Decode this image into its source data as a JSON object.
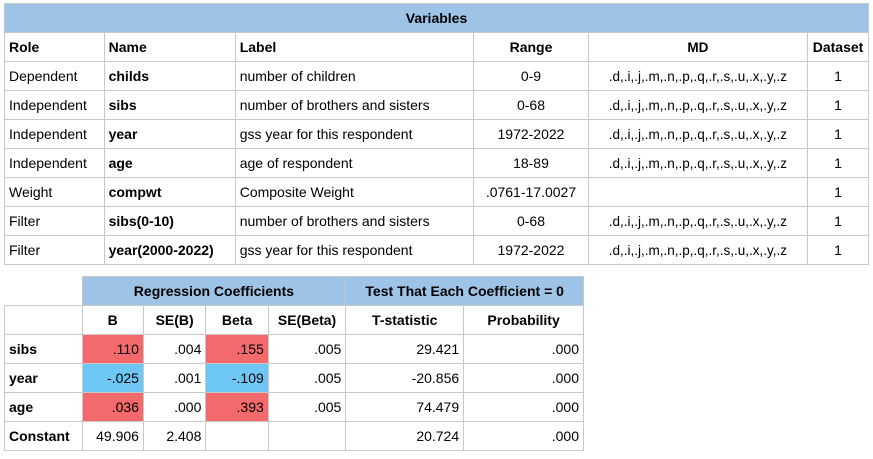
{
  "variables": {
    "title": "Variables",
    "headers": [
      "Role",
      "Name",
      "Label",
      "Range",
      "MD",
      "Dataset"
    ],
    "rows": [
      {
        "role": "Dependent",
        "name": "childs",
        "label": "number of children",
        "range": "0-9",
        "md": ".d,.i,.j,.m,.n,.p,.q,.r,.s,.u,.x,.y,.z",
        "dataset": "1"
      },
      {
        "role": "Independent",
        "name": "sibs",
        "label": "number of brothers and sisters",
        "range": "0-68",
        "md": ".d,.i,.j,.m,.n,.p,.q,.r,.s,.u,.x,.y,.z",
        "dataset": "1"
      },
      {
        "role": "Independent",
        "name": "year",
        "label": "gss year for this respondent",
        "range": "1972-2022",
        "md": ".d,.i,.j,.m,.n,.p,.q,.r,.s,.u,.x,.y,.z",
        "dataset": "1"
      },
      {
        "role": "Independent",
        "name": "age",
        "label": "age of respondent",
        "range": "18-89",
        "md": ".d,.i,.j,.m,.n,.p,.q,.r,.s,.u,.x,.y,.z",
        "dataset": "1"
      },
      {
        "role": "Weight",
        "name": "compwt",
        "label": "Composite Weight",
        "range": ".0761-17.0027",
        "md": "",
        "dataset": "1"
      },
      {
        "role": "Filter",
        "name": "sibs(0-10)",
        "label": "number of brothers and sisters",
        "range": "0-68",
        "md": ".d,.i,.j,.m,.n,.p,.q,.r,.s,.u,.x,.y,.z",
        "dataset": "1"
      },
      {
        "role": "Filter",
        "name": "year(2000-2022)",
        "label": "gss year for this respondent",
        "range": "1972-2022",
        "md": ".d,.i,.j,.m,.n,.p,.q,.r,.s,.u,.x,.y,.z",
        "dataset": "1"
      }
    ]
  },
  "regression": {
    "title_coef": "Regression Coefficients",
    "title_test": "Test That Each Coefficient = 0",
    "headers": [
      "B",
      "SE(B)",
      "Beta",
      "SE(Beta)",
      "T-statistic",
      "Probability"
    ],
    "highlight_colors": {
      "positive": "#f4696b",
      "negative": "#6ec6f5"
    },
    "rows": [
      {
        "name": "sibs",
        "b": ".110",
        "se_b": ".004",
        "beta": ".155",
        "se_beta": ".005",
        "t": "29.421",
        "p": ".000",
        "sign": "positive"
      },
      {
        "name": "year",
        "b": "-.025",
        "se_b": ".001",
        "beta": "-.109",
        "se_beta": ".005",
        "t": "-20.856",
        "p": ".000",
        "sign": "negative"
      },
      {
        "name": "age",
        "b": ".036",
        "se_b": ".000",
        "beta": ".393",
        "se_beta": ".005",
        "t": "74.479",
        "p": ".000",
        "sign": "positive"
      },
      {
        "name": "Constant",
        "b": "49.906",
        "se_b": "2.408",
        "beta": "",
        "se_beta": "",
        "t": "20.724",
        "p": ".000",
        "sign": ""
      }
    ]
  }
}
